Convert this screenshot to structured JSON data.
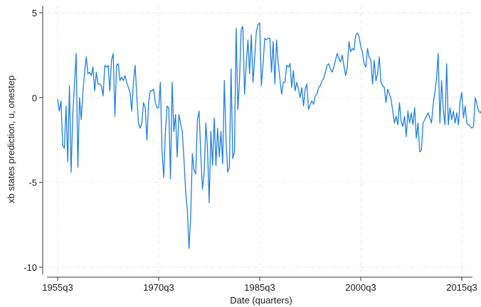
{
  "chart_data": {
    "type": "line",
    "title": "",
    "xlabel": "Date (quarters)",
    "ylabel": "xb states prediction, u, onestep",
    "xlim": [
      1955.5,
      2015.5
    ],
    "ylim": [
      -10,
      5
    ],
    "grid": true,
    "x_ticks": [
      {
        "value": 1955.5,
        "label": "1955q3"
      },
      {
        "value": 1970.5,
        "label": "1970q3"
      },
      {
        "value": 1985.5,
        "label": "1985q3"
      },
      {
        "value": 2000.5,
        "label": "2000q3"
      },
      {
        "value": 2015.5,
        "label": "2015q3"
      }
    ],
    "y_ticks": [
      {
        "value": 5,
        "label": "5"
      },
      {
        "value": 0,
        "label": "0"
      },
      {
        "value": -5,
        "label": "-5"
      },
      {
        "value": -10,
        "label": "-10"
      }
    ],
    "start": {
      "year": 1955,
      "quarter": 3
    },
    "series": [
      {
        "color": "#1f7fe0",
        "values": [
          -0.1,
          -0.8,
          -0.2,
          -2.8,
          -3.0,
          -0.5,
          -3.8,
          0.7,
          -4.4,
          -1.0,
          0.8,
          2.6,
          -4.1,
          0.0,
          -1.3,
          0.3,
          1.5,
          2.4,
          1.4,
          1.5,
          1.3,
          1.8,
          0.4,
          1.5,
          0.8,
          0.8,
          0.7,
          0.1,
          1.9,
          1.8,
          1.9,
          0.4,
          2.2,
          2.6,
          -1.1,
          1.9,
          2.0,
          1.0,
          1.2,
          1.0,
          1.3,
          0.9,
          0.6,
          0.3,
          -0.8,
          0.9,
          1.9,
          0.1,
          -1.5,
          -1.8,
          -1.5,
          -0.3,
          -0.6,
          -2.5,
          -0.3,
          0.4,
          0.4,
          0.5,
          -0.3,
          -0.6,
          -0.6,
          0.9,
          -3.2,
          -4.7,
          -2.0,
          -0.5,
          -0.6,
          -4.8,
          0.9,
          -2.0,
          -1.0,
          -3.5,
          -1.0,
          -1.5,
          -2.0,
          -3.6,
          -5.5,
          -6.6,
          -8.9,
          -7.0,
          -3.3,
          -4.3,
          -4.5,
          -1.3,
          -0.8,
          -3.3,
          -5.4,
          -4.5,
          -1.5,
          -3.0,
          -6.2,
          -2.0,
          -4.0,
          -1.2,
          -4.0,
          -1.8,
          -3.5,
          -2.0,
          -3.9,
          1.0,
          -2.5,
          -4.4,
          -4.1,
          1.7,
          -3.6,
          -3.2,
          4.1,
          -0.7,
          1.0,
          4.0,
          4.2,
          0.2,
          2.0,
          3.4,
          1.4,
          3.7,
          0.9,
          2.3,
          3.9,
          4.3,
          4.4,
          0.7,
          2.0,
          3.5,
          3.4,
          3.5,
          3.5,
          1.5,
          3.3,
          0.8,
          3.4,
          2.0,
          1.1,
          0.2,
          0.9,
          0.9,
          1.9,
          1.8,
          2.0,
          0.6,
          1.6,
          0.4,
          0.9,
          0.5,
          0.0,
          0.6,
          -0.5,
          0.5,
          0.8,
          -0.7,
          -0.4,
          -0.2,
          -0.4,
          0.1,
          0.2,
          0.6,
          0.7,
          1.0,
          1.1,
          1.5,
          1.9,
          2.0,
          1.7,
          1.5,
          1.8,
          2.2,
          2.6,
          2.3,
          2.1,
          2.5,
          1.9,
          1.3,
          1.8,
          3.3,
          2.7,
          2.9,
          2.8,
          3.7,
          3.8,
          3.6,
          3.0,
          2.7,
          2.0,
          1.8,
          2.9,
          2.4,
          2.2,
          0.8,
          2.2,
          1.0,
          1.4,
          2.4,
          0.9,
          0.7,
          0.6,
          -0.3,
          0.5,
          0.2,
          -0.1,
          -0.8,
          -1.5,
          -1.1,
          -1.6,
          -0.3,
          -1.4,
          -1.7,
          -1.1,
          -2.3,
          -0.8,
          -1.5,
          -0.9,
          -1.6,
          -0.6,
          -2.4,
          -1.5,
          -3.2,
          -3.1,
          -1.5,
          -1.3,
          -1.1,
          -0.9,
          -1.2,
          -1.5,
          -0.4,
          0.3,
          1.1,
          2.6,
          -1.5,
          1.0,
          -0.7,
          -1.6,
          2.0,
          -1.6,
          -0.6,
          -1.3,
          -0.8,
          -1.5,
          -0.9,
          -1.6,
          -0.2,
          0.3,
          -1.2,
          -0.5,
          -1.5,
          -1.6,
          -1.7,
          -1.8,
          -1.7,
          0.0,
          -0.4,
          -0.8,
          -0.9,
          -0.7,
          -1.9,
          -1.6,
          -1.3,
          -1.0,
          -1.8,
          -0.6,
          -1.5,
          -2.5,
          -2.9,
          -3.0,
          -2.1,
          -1.4,
          -1.0,
          -1.0,
          -1.6,
          0.2,
          -1.4,
          -1.8,
          -1.3,
          -1.6,
          -1.5,
          -1.5,
          -1.4,
          -1.8,
          -0.6,
          0.1,
          0.7,
          0.9,
          -2.0,
          -0.7
        ]
      }
    ]
  }
}
